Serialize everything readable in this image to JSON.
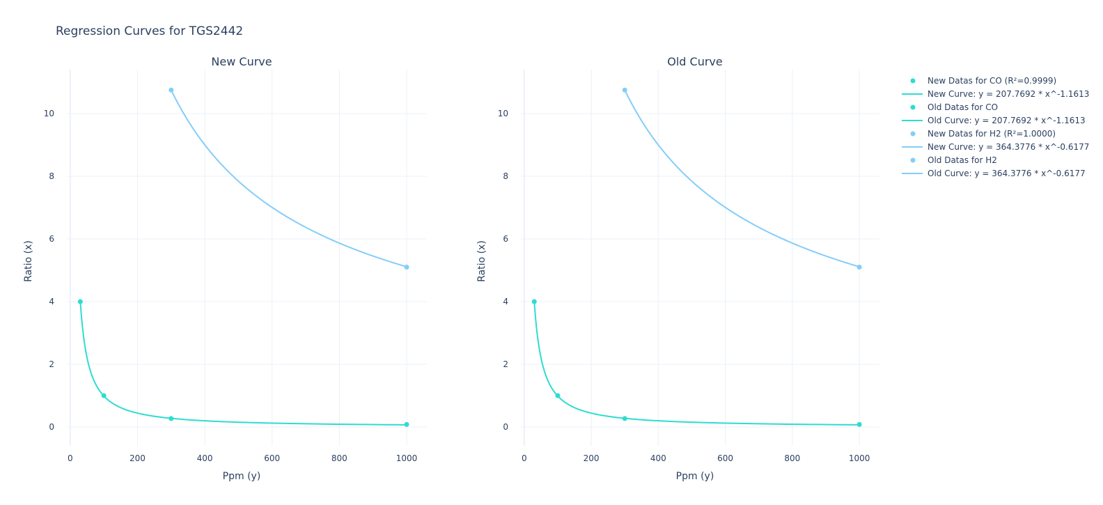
{
  "figure_title": "Regression Curves for TGS2442",
  "colors": {
    "co": "#2edcd0",
    "h2": "#84cdfa",
    "grid": "#ebf0f8",
    "text": "#2a3f5f"
  },
  "chart_data": [
    {
      "type": "scatter",
      "title": "New Curve",
      "xlabel": "Ppm (y)",
      "ylabel": "Ratio (x)",
      "xlim": [
        -10,
        1060
      ],
      "ylim": [
        -0.6,
        11.4
      ],
      "xticks": [
        0,
        200,
        400,
        600,
        800,
        1000
      ],
      "yticks": [
        0,
        2,
        4,
        6,
        8,
        10
      ],
      "grid": true,
      "series": [
        {
          "name": "New Datas for CO (R²=0.9999)",
          "mode": "markers",
          "gas": "co",
          "x": [
            30,
            100,
            300,
            1000
          ],
          "y": [
            4.0,
            1.0,
            0.27,
            0.08
          ]
        },
        {
          "name": "New Curve: y = 207.7692 * x^-1.1613",
          "mode": "lines",
          "gas": "co",
          "a": 207.7692,
          "b": -1.1613,
          "x_range": [
            30,
            1000
          ]
        },
        {
          "name": "New Datas for H2 (R²=1.0000)",
          "mode": "markers",
          "gas": "h2",
          "x": [
            300,
            1000
          ],
          "y": [
            10.75,
            5.1
          ]
        },
        {
          "name": "New Curve: y = 364.3776 * x^-0.6177",
          "mode": "lines",
          "gas": "h2",
          "a": 364.3776,
          "b": -0.6177,
          "x_range": [
            300,
            1000
          ]
        }
      ]
    },
    {
      "type": "scatter",
      "title": "Old Curve",
      "xlabel": "Ppm (y)",
      "ylabel": "Ratio (x)",
      "xlim": [
        -10,
        1060
      ],
      "ylim": [
        -0.6,
        11.4
      ],
      "xticks": [
        0,
        200,
        400,
        600,
        800,
        1000
      ],
      "yticks": [
        0,
        2,
        4,
        6,
        8,
        10
      ],
      "grid": true,
      "series": [
        {
          "name": "Old Datas for CO",
          "mode": "markers",
          "gas": "co",
          "x": [
            30,
            100,
            300,
            1000
          ],
          "y": [
            4.0,
            1.0,
            0.27,
            0.08
          ]
        },
        {
          "name": "Old Curve: y = 207.7692 * x^-1.1613",
          "mode": "lines",
          "gas": "co",
          "a": 207.7692,
          "b": -1.1613,
          "x_range": [
            30,
            1000
          ]
        },
        {
          "name": "Old Datas for H2",
          "mode": "markers",
          "gas": "h2",
          "x": [
            300,
            1000
          ],
          "y": [
            10.75,
            5.1
          ]
        },
        {
          "name": "Old Curve: y = 364.3776 * x^-0.6177",
          "mode": "lines",
          "gas": "h2",
          "a": 364.3776,
          "b": -0.6177,
          "x_range": [
            300,
            1000
          ]
        }
      ]
    }
  ],
  "legend": {
    "placement": "right",
    "items": [
      {
        "label": "New Datas for CO (R²=0.9999)",
        "kind": "marker",
        "gas": "co"
      },
      {
        "label": "New Curve: y = 207.7692 * x^-1.1613",
        "kind": "line",
        "gas": "co"
      },
      {
        "label": "Old Datas for CO",
        "kind": "marker",
        "gas": "co"
      },
      {
        "label": "Old Curve: y = 207.7692 * x^-1.1613",
        "kind": "line",
        "gas": "co"
      },
      {
        "label": "New Datas for H2 (R²=1.0000)",
        "kind": "marker",
        "gas": "h2"
      },
      {
        "label": "New Curve: y = 364.3776 * x^-0.6177",
        "kind": "line",
        "gas": "h2"
      },
      {
        "label": "Old Datas for H2",
        "kind": "marker",
        "gas": "h2"
      },
      {
        "label": "Old Curve: y = 364.3776 * x^-0.6177",
        "kind": "line",
        "gas": "h2"
      }
    ]
  }
}
